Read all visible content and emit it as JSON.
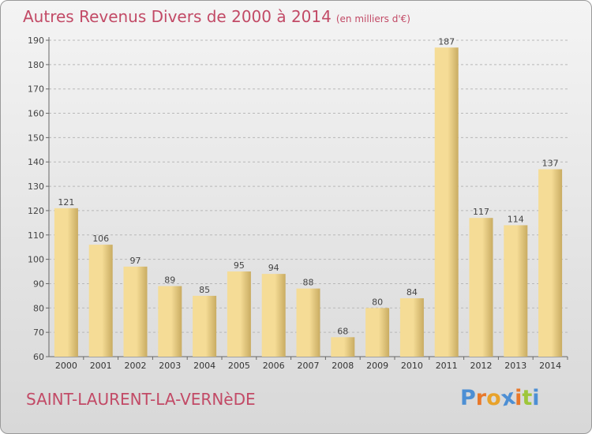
{
  "title": "Autres Revenus Divers de 2000 à 2014",
  "unit": "(en milliers d'€)",
  "town": "SAINT-LAURENT-LA-VERNèDE",
  "logo": {
    "text": "Proxiti",
    "colors": [
      "#4d8fd4",
      "#e8782a",
      "#e8a22a",
      "#4d8fd4",
      "#e8782a",
      "#9ec63a",
      "#4d8fd4"
    ]
  },
  "colors": {
    "title": "#c24a66",
    "bar_light": "#f5dc96",
    "bar_dark": "#c9ac62",
    "grid": "#b8b8b8"
  },
  "chart_data": {
    "type": "bar",
    "categories": [
      "2000",
      "2001",
      "2002",
      "2003",
      "2004",
      "2005",
      "2006",
      "2007",
      "2008",
      "2009",
      "2010",
      "2011",
      "2012",
      "2013",
      "2014"
    ],
    "values": [
      121,
      106,
      97,
      89,
      85,
      95,
      94,
      88,
      68,
      80,
      84,
      187,
      117,
      114,
      137
    ],
    "ylim": [
      60,
      190
    ],
    "yticks": [
      60,
      70,
      80,
      90,
      100,
      110,
      120,
      130,
      140,
      150,
      160,
      170,
      180,
      190
    ],
    "grid": true,
    "data_labels": true
  }
}
